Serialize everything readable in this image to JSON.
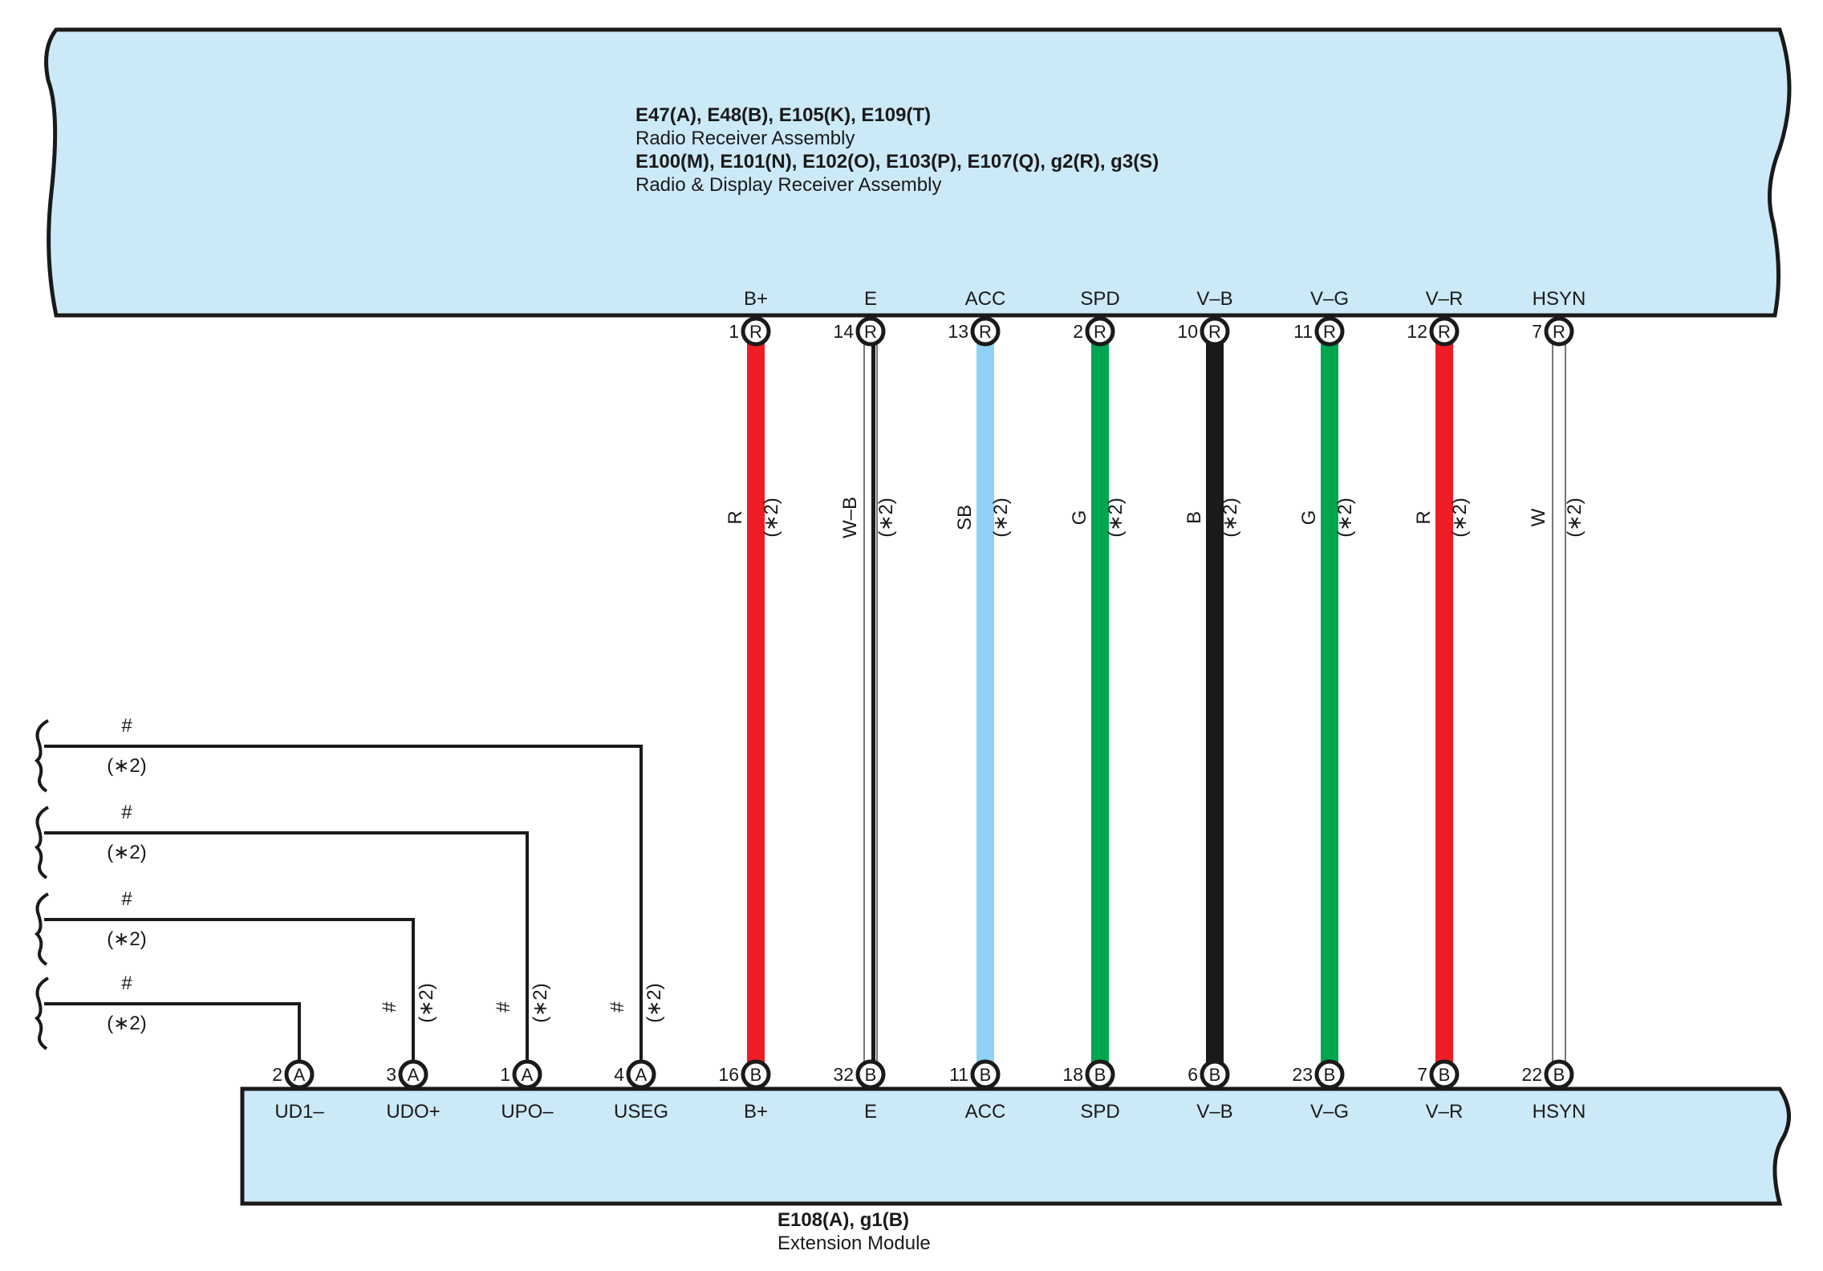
{
  "receiver": {
    "line1": "E47(A), E48(B), E105(K), E109(T)",
    "line2": "Radio Receiver Assembly",
    "line3": "E100(M), E101(N), E102(O), E103(P), E107(Q), g2(R), g3(S)",
    "line4": "Radio & Display Receiver Assembly"
  },
  "extension": {
    "line1": "E108(A), g1(B)",
    "line2": "Extension Module"
  },
  "wires": [
    {
      "signal": "B+",
      "top_pin": "1",
      "top_conn": "R",
      "bottom_pin": "16",
      "bottom_conn": "B",
      "color_code": "R",
      "note": "(∗2)",
      "color": "#ee1c25",
      "stripe": ""
    },
    {
      "signal": "E",
      "top_pin": "14",
      "top_conn": "R",
      "bottom_pin": "32",
      "bottom_conn": "B",
      "color_code": "W–B",
      "note": "(∗2)",
      "color": "#ffffff",
      "stripe": "#1a1a1a"
    },
    {
      "signal": "ACC",
      "top_pin": "13",
      "top_conn": "R",
      "bottom_pin": "11",
      "bottom_conn": "B",
      "color_code": "SB",
      "note": "(∗2)",
      "color": "#8ed3f5",
      "stripe": ""
    },
    {
      "signal": "SPD",
      "top_pin": "2",
      "top_conn": "R",
      "bottom_pin": "18",
      "bottom_conn": "B",
      "color_code": "G",
      "note": "(∗2)",
      "color": "#00a54f",
      "stripe": ""
    },
    {
      "signal": "V–B",
      "top_pin": "10",
      "top_conn": "R",
      "bottom_pin": "6",
      "bottom_conn": "B",
      "color_code": "B",
      "note": "(∗2)",
      "color": "#1a1a1a",
      "stripe": ""
    },
    {
      "signal": "V–G",
      "top_pin": "11",
      "top_conn": "R",
      "bottom_pin": "23",
      "bottom_conn": "B",
      "color_code": "G",
      "note": "(∗2)",
      "color": "#00a54f",
      "stripe": ""
    },
    {
      "signal": "V–R",
      "top_pin": "12",
      "top_conn": "R",
      "bottom_pin": "7",
      "bottom_conn": "B",
      "color_code": "R",
      "note": "(∗2)",
      "color": "#ee1c25",
      "stripe": ""
    },
    {
      "signal": "HSYN",
      "top_pin": "7",
      "top_conn": "R",
      "bottom_pin": "22",
      "bottom_conn": "B",
      "color_code": "W",
      "note": "(∗2)",
      "color": "#ffffff",
      "stripe": ""
    }
  ],
  "side_wires": [
    {
      "signal": "UD1–",
      "pin": "2",
      "conn": "A",
      "color_code": "#",
      "note": "(∗2)",
      "vertical_label": false
    },
    {
      "signal": "UDO+",
      "pin": "3",
      "conn": "A",
      "color_code": "#",
      "note": "(∗2)",
      "vertical_label": true
    },
    {
      "signal": "UPO–",
      "pin": "1",
      "conn": "A",
      "color_code": "#",
      "note": "(∗2)",
      "vertical_label": true
    },
    {
      "signal": "USEG",
      "pin": "4",
      "conn": "A",
      "color_code": "#",
      "note": "(∗2)",
      "vertical_label": true
    }
  ],
  "left_labels": [
    {
      "code": "#",
      "note": "(∗2)"
    },
    {
      "code": "#",
      "note": "(∗2)"
    },
    {
      "code": "#",
      "note": "(∗2)"
    },
    {
      "code": "#",
      "note": "(∗2)"
    }
  ],
  "colors": {
    "box_fill": "#cce9f8",
    "outline": "#1a1a1a"
  }
}
